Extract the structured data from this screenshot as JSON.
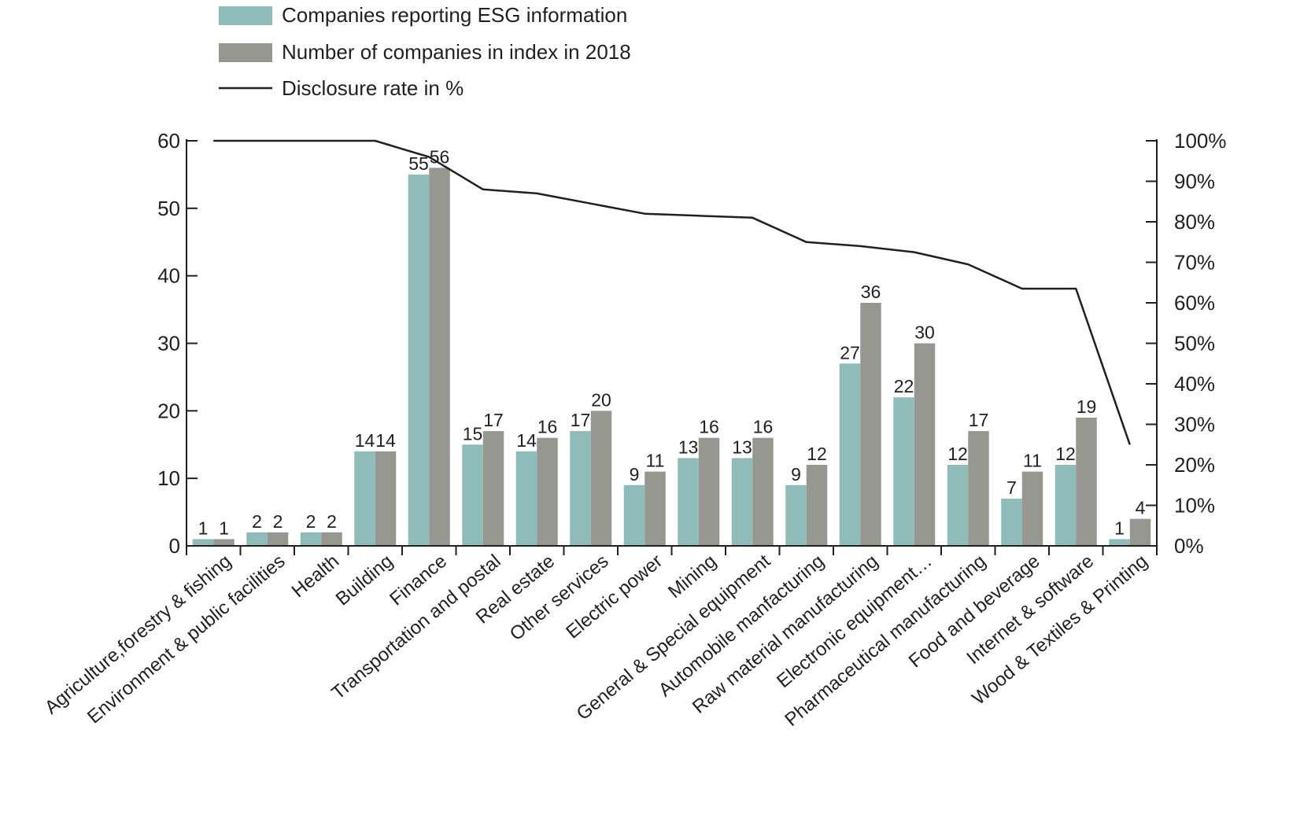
{
  "chart_data": {
    "type": "bar",
    "categories": [
      "Agriculture,forestry & fishing",
      "Environment & public facilities",
      "Health",
      "Building",
      "Finance",
      "Transportation and postal",
      "Real estate",
      "Other services",
      "Electric power",
      "Mining",
      "General & Special equipment",
      "Automobile manfacturing",
      "Raw material manufacturing",
      "Electronic equipment…",
      "Pharmaceutical manufacturing",
      "Food and beverage",
      "Internet & software",
      "Wood & Textiles & Printing"
    ],
    "series": [
      {
        "name": "Companies reporting ESG information",
        "type": "bar",
        "axis": "left",
        "color": "#8fbcb8",
        "values": [
          1,
          2,
          2,
          14,
          55,
          15,
          14,
          17,
          9,
          13,
          13,
          9,
          27,
          22,
          12,
          7,
          12,
          1
        ]
      },
      {
        "name": "Number of companies in index in 2018",
        "type": "bar",
        "axis": "left",
        "color": "#979791",
        "values": [
          1,
          2,
          2,
          14,
          56,
          17,
          16,
          20,
          11,
          16,
          16,
          12,
          36,
          30,
          17,
          11,
          19,
          4
        ]
      },
      {
        "name": "Disclosure rate in %",
        "type": "line",
        "axis": "right",
        "color": "#231f20",
        "values": [
          100,
          100,
          100,
          100,
          96,
          88,
          87,
          84.5,
          82,
          81.5,
          81,
          75,
          74,
          72.5,
          69.5,
          63.5,
          63.5,
          25
        ]
      }
    ],
    "y_left": {
      "min": 0,
      "max": 60,
      "ticks": [
        "0",
        "10",
        "20",
        "30",
        "40",
        "50",
        "60"
      ]
    },
    "y_right": {
      "min": 0,
      "max": 100,
      "ticks": [
        "0%",
        "10%",
        "20%",
        "30%",
        "40%",
        "50%",
        "60%",
        "70%",
        "80%",
        "90%",
        "100%"
      ]
    },
    "legend_position": "top-left",
    "grid": false
  }
}
